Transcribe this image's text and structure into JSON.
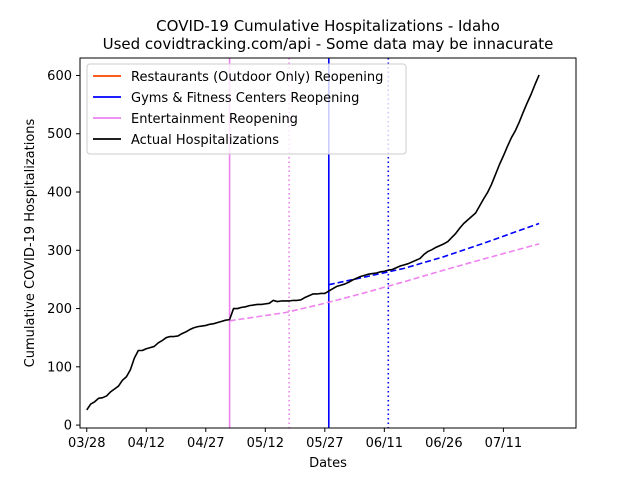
{
  "chart_data": {
    "type": "line",
    "title": "COVID-19 Cumulative Hospitalizations - Idaho",
    "subtitle": "Used covidtracking.com/api - Some data may be innacurate",
    "xlabel": "Dates",
    "ylabel": "Cumulative COVID-19 Hospitalizations",
    "x_start": "03/28",
    "x_range_days": [
      -1.7,
      123.3
    ],
    "ylim": [
      -5,
      630
    ],
    "x_ticks": [
      {
        "day": 0,
        "label": "03/28"
      },
      {
        "day": 15,
        "label": "04/12"
      },
      {
        "day": 30,
        "label": "04/27"
      },
      {
        "day": 45,
        "label": "05/12"
      },
      {
        "day": 60,
        "label": "05/27"
      },
      {
        "day": 75,
        "label": "06/11"
      },
      {
        "day": 90,
        "label": "06/26"
      },
      {
        "day": 105,
        "label": "07/11"
      }
    ],
    "y_ticks": [
      0,
      100,
      200,
      300,
      400,
      500,
      600
    ],
    "grid": false,
    "legend_position": "top-left",
    "legend": [
      {
        "label": "Restaurants (Outdoor Only) Reopening",
        "color": "#ff4500"
      },
      {
        "label": "Gyms & Fitness Centers Reopening",
        "color": "#0000ff"
      },
      {
        "label": "Entertainment Reopening",
        "color": "#ee82ee"
      },
      {
        "label": "Actual Hospitalizations",
        "color": "#000000"
      }
    ],
    "vertical_lines": [
      {
        "day": 36,
        "color": "#ee82ee",
        "style": "solid"
      },
      {
        "day": 51,
        "color": "#ee82ee",
        "style": "dotted"
      },
      {
        "day": 61,
        "color": "#0000ff",
        "style": "solid"
      },
      {
        "day": 76,
        "color": "#0000ff",
        "style": "dotted"
      }
    ],
    "series": [
      {
        "name": "Actual Hospitalizations",
        "color": "#000000",
        "style": "solid",
        "points": [
          [
            0,
            26
          ],
          [
            1,
            36
          ],
          [
            2,
            40
          ],
          [
            3,
            46
          ],
          [
            4,
            47
          ],
          [
            5,
            50
          ],
          [
            6,
            57
          ],
          [
            7,
            62
          ],
          [
            8,
            67
          ],
          [
            9,
            77
          ],
          [
            10,
            83
          ],
          [
            11,
            95
          ],
          [
            12,
            115
          ],
          [
            13,
            128
          ],
          [
            14,
            128
          ],
          [
            15,
            131
          ],
          [
            16,
            133
          ],
          [
            17,
            135
          ],
          [
            18,
            141
          ],
          [
            19,
            145
          ],
          [
            20,
            150
          ],
          [
            21,
            152
          ],
          [
            22,
            152
          ],
          [
            23,
            153
          ],
          [
            24,
            157
          ],
          [
            25,
            160
          ],
          [
            26,
            164
          ],
          [
            27,
            167
          ],
          [
            28,
            169
          ],
          [
            29,
            170
          ],
          [
            30,
            171
          ],
          [
            31,
            173
          ],
          [
            32,
            174
          ],
          [
            33,
            176
          ],
          [
            34,
            178
          ],
          [
            35,
            180
          ],
          [
            36,
            181
          ],
          [
            37,
            200
          ],
          [
            38,
            200
          ],
          [
            39,
            202
          ],
          [
            40,
            203
          ],
          [
            41,
            205
          ],
          [
            42,
            206
          ],
          [
            43,
            207
          ],
          [
            44,
            207
          ],
          [
            45,
            208
          ],
          [
            46,
            209
          ],
          [
            47,
            214
          ],
          [
            48,
            212
          ],
          [
            49,
            213
          ],
          [
            50,
            213
          ],
          [
            51,
            213
          ],
          [
            52,
            214
          ],
          [
            53,
            214
          ],
          [
            54,
            215
          ],
          [
            55,
            219
          ],
          [
            56,
            222
          ],
          [
            57,
            225
          ],
          [
            58,
            225
          ],
          [
            59,
            226
          ],
          [
            60,
            226
          ],
          [
            61,
            230
          ],
          [
            62,
            234
          ],
          [
            63,
            238
          ],
          [
            64,
            240
          ],
          [
            65,
            242
          ],
          [
            66,
            245
          ],
          [
            67,
            249
          ],
          [
            68,
            252
          ],
          [
            69,
            255
          ],
          [
            70,
            257
          ],
          [
            71,
            259
          ],
          [
            72,
            260
          ],
          [
            73,
            261
          ],
          [
            74,
            263
          ],
          [
            75,
            264
          ],
          [
            76,
            266
          ],
          [
            77,
            267
          ],
          [
            78,
            270
          ],
          [
            79,
            273
          ],
          [
            80,
            275
          ],
          [
            81,
            277
          ],
          [
            82,
            280
          ],
          [
            83,
            283
          ],
          [
            84,
            286
          ],
          [
            85,
            293
          ],
          [
            86,
            298
          ],
          [
            87,
            301
          ],
          [
            88,
            305
          ],
          [
            89,
            308
          ],
          [
            90,
            311
          ],
          [
            91,
            315
          ],
          [
            92,
            322
          ],
          [
            93,
            329
          ],
          [
            94,
            338
          ],
          [
            95,
            346
          ],
          [
            96,
            352
          ],
          [
            97,
            358
          ],
          [
            98,
            364
          ],
          [
            99,
            376
          ],
          [
            100,
            388
          ],
          [
            101,
            399
          ],
          [
            102,
            413
          ],
          [
            103,
            430
          ],
          [
            104,
            447
          ],
          [
            105,
            462
          ],
          [
            106,
            478
          ],
          [
            107,
            493
          ],
          [
            108,
            505
          ],
          [
            109,
            520
          ],
          [
            110,
            537
          ],
          [
            111,
            553
          ],
          [
            112,
            568
          ],
          [
            113,
            585
          ],
          [
            114,
            601
          ]
        ]
      },
      {
        "name": "",
        "color": "#ee82ee",
        "style": "dashed",
        "points": [
          [
            36,
            179
          ],
          [
            50,
            193
          ],
          [
            60,
            209
          ],
          [
            70,
            227
          ],
          [
            80,
            246
          ],
          [
            90,
            266
          ],
          [
            100,
            285
          ],
          [
            114,
            311
          ]
        ]
      },
      {
        "name": "",
        "color": "#0000ff",
        "style": "dashed",
        "points": [
          [
            61,
            241
          ],
          [
            70,
            254
          ],
          [
            80,
            269
          ],
          [
            90,
            289
          ],
          [
            100,
            312
          ],
          [
            114,
            346
          ]
        ]
      }
    ]
  }
}
